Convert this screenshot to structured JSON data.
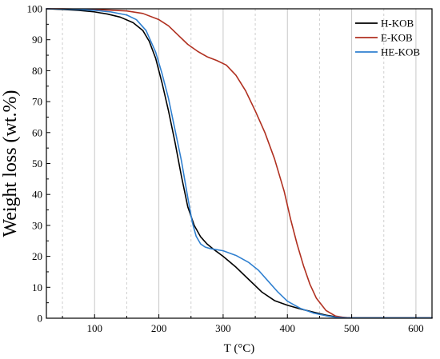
{
  "chart_data": {
    "type": "line",
    "title": "",
    "xlabel": "T (°C)",
    "ylabel": "Weight loss (wt.%)",
    "xlim": [
      25,
      625
    ],
    "ylim": [
      0,
      100
    ],
    "xticks": [
      100,
      200,
      300,
      400,
      500,
      600
    ],
    "yticks": [
      0,
      10,
      20,
      30,
      40,
      50,
      60,
      70,
      80,
      90,
      100
    ],
    "grid": true,
    "legend_position": "top-right",
    "series": [
      {
        "name": "H-KOB",
        "color": "#000000",
        "points": [
          [
            25,
            100
          ],
          [
            50,
            99.8
          ],
          [
            75,
            99.5
          ],
          [
            100,
            99
          ],
          [
            120,
            98.3
          ],
          [
            140,
            97.3
          ],
          [
            160,
            95.5
          ],
          [
            175,
            93
          ],
          [
            185,
            89.5
          ],
          [
            195,
            84
          ],
          [
            205,
            76
          ],
          [
            215,
            67
          ],
          [
            225,
            57
          ],
          [
            235,
            46
          ],
          [
            245,
            36
          ],
          [
            255,
            30
          ],
          [
            265,
            26.3
          ],
          [
            275,
            24
          ],
          [
            285,
            22.3
          ],
          [
            300,
            20
          ],
          [
            320,
            16.5
          ],
          [
            340,
            12.5
          ],
          [
            360,
            8.5
          ],
          [
            380,
            5.7
          ],
          [
            400,
            4.2
          ],
          [
            420,
            3
          ],
          [
            440,
            2
          ],
          [
            460,
            1
          ],
          [
            480,
            0.3
          ],
          [
            500,
            0.1
          ],
          [
            550,
            0.1
          ],
          [
            625,
            0.1
          ]
        ]
      },
      {
        "name": "E-KOB",
        "color": "#b03020",
        "points": [
          [
            25,
            100
          ],
          [
            50,
            100
          ],
          [
            100,
            99.8
          ],
          [
            150,
            99.3
          ],
          [
            175,
            98.5
          ],
          [
            200,
            96.5
          ],
          [
            215,
            94.5
          ],
          [
            230,
            91.5
          ],
          [
            245,
            88.5
          ],
          [
            260,
            86.3
          ],
          [
            275,
            84.5
          ],
          [
            290,
            83.3
          ],
          [
            305,
            81.8
          ],
          [
            320,
            78.5
          ],
          [
            335,
            73.5
          ],
          [
            350,
            67
          ],
          [
            365,
            60
          ],
          [
            380,
            51.5
          ],
          [
            395,
            41
          ],
          [
            405,
            32
          ],
          [
            415,
            24
          ],
          [
            425,
            17
          ],
          [
            435,
            11
          ],
          [
            445,
            6.5
          ],
          [
            460,
            2.5
          ],
          [
            475,
            0.7
          ],
          [
            490,
            0.2
          ],
          [
            500,
            0.1
          ],
          [
            550,
            0.1
          ],
          [
            625,
            0.1
          ]
        ]
      },
      {
        "name": "HE-KOB",
        "color": "#3080d0",
        "points": [
          [
            25,
            100
          ],
          [
            75,
            99.8
          ],
          [
            100,
            99.5
          ],
          [
            125,
            99
          ],
          [
            150,
            98
          ],
          [
            165,
            96.5
          ],
          [
            180,
            93
          ],
          [
            195,
            86
          ],
          [
            205,
            79
          ],
          [
            215,
            71
          ],
          [
            225,
            61
          ],
          [
            235,
            51
          ],
          [
            245,
            39
          ],
          [
            252,
            31
          ],
          [
            258,
            26.5
          ],
          [
            265,
            24
          ],
          [
            272,
            23
          ],
          [
            280,
            22.5
          ],
          [
            300,
            21.8
          ],
          [
            320,
            20.3
          ],
          [
            340,
            18
          ],
          [
            355,
            15.5
          ],
          [
            370,
            12
          ],
          [
            385,
            8.5
          ],
          [
            400,
            5.5
          ],
          [
            420,
            3.2
          ],
          [
            440,
            1.7
          ],
          [
            460,
            0.8
          ],
          [
            475,
            0.3
          ],
          [
            490,
            0.1
          ],
          [
            550,
            0.1
          ],
          [
            625,
            0.1
          ]
        ]
      }
    ]
  }
}
